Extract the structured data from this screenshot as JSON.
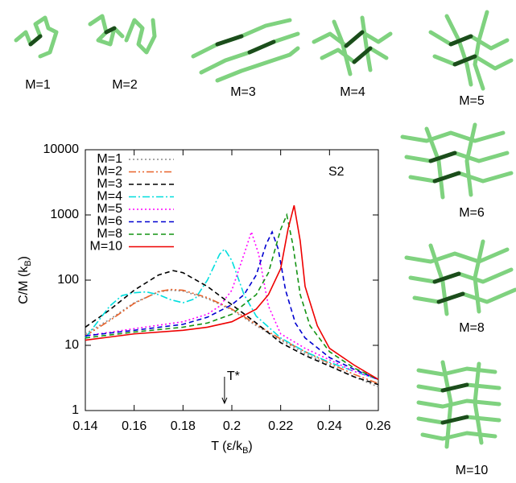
{
  "chart_data": {
    "type": "line",
    "xlabel": [
      "T (ε/k",
      "B",
      ")"
    ],
    "ylabel": [
      "C/M (k",
      "B",
      ")"
    ],
    "xlim": [
      0.14,
      0.26
    ],
    "xticks": [
      0.14,
      0.16,
      0.18,
      0.2,
      0.22,
      0.24,
      0.26
    ],
    "ylim": [
      1,
      10000
    ],
    "yticks": [
      1,
      10,
      100,
      1000,
      10000
    ],
    "ylog": true,
    "legend": "upper left",
    "annotations": [
      {
        "text": "S2"
      },
      {
        "text": "T*",
        "x": 0.197
      }
    ],
    "series": [
      {
        "name": "M=1",
        "color": "#8c8c8c",
        "style": "dotted",
        "x": [
          0.14,
          0.15,
          0.16,
          0.17,
          0.175,
          0.18,
          0.19,
          0.2,
          0.21,
          0.22,
          0.23,
          0.24,
          0.25,
          0.26
        ],
        "values": [
          15,
          25,
          45,
          66,
          70,
          68,
          52,
          35,
          20,
          12,
          7.5,
          5,
          3.3,
          2.3
        ]
      },
      {
        "name": "M=2",
        "color": "#e8622a",
        "style": "dash-dot-dot",
        "x": [
          0.14,
          0.15,
          0.16,
          0.17,
          0.175,
          0.18,
          0.19,
          0.2,
          0.21,
          0.22,
          0.23,
          0.24,
          0.25,
          0.26
        ],
        "values": [
          14,
          24,
          44,
          67,
          72,
          70,
          54,
          36,
          21,
          12.5,
          8,
          5.3,
          3.6,
          2.6
        ]
      },
      {
        "name": "M=3",
        "color": "#000000",
        "style": "dashed",
        "x": [
          0.14,
          0.15,
          0.16,
          0.17,
          0.176,
          0.18,
          0.19,
          0.2,
          0.21,
          0.22,
          0.23,
          0.24,
          0.25,
          0.26
        ],
        "values": [
          19,
          35,
          70,
          120,
          140,
          130,
          80,
          42,
          22,
          11,
          7,
          4.8,
          3.3,
          2.5
        ]
      },
      {
        "name": "M=4",
        "color": "#00dede",
        "style": "dash-dot",
        "x": [
          0.14,
          0.15,
          0.155,
          0.16,
          0.165,
          0.17,
          0.175,
          0.18,
          0.185,
          0.19,
          0.195,
          0.197,
          0.2,
          0.205,
          0.21,
          0.22,
          0.23,
          0.24,
          0.25,
          0.26
        ],
        "values": [
          13,
          40,
          58,
          64,
          66,
          60,
          50,
          45,
          52,
          100,
          250,
          300,
          200,
          60,
          28,
          13,
          8,
          5.5,
          4,
          3
        ]
      },
      {
        "name": "M=5",
        "color": "#ff00ff",
        "style": "dotted",
        "x": [
          0.14,
          0.16,
          0.18,
          0.19,
          0.195,
          0.2,
          0.205,
          0.208,
          0.211,
          0.215,
          0.22,
          0.23,
          0.24,
          0.25,
          0.26
        ],
        "values": [
          14,
          18,
          23,
          30,
          40,
          70,
          250,
          550,
          250,
          40,
          15,
          9,
          6,
          4,
          3
        ]
      },
      {
        "name": "M=6",
        "color": "#0000d0",
        "style": "dashed",
        "x": [
          0.14,
          0.16,
          0.18,
          0.19,
          0.2,
          0.205,
          0.21,
          0.214,
          0.2165,
          0.219,
          0.222,
          0.226,
          0.23,
          0.24,
          0.25,
          0.26
        ],
        "values": [
          14,
          17,
          21,
          27,
          42,
          60,
          120,
          350,
          550,
          300,
          70,
          22,
          13,
          6.5,
          4.3,
          3
        ]
      },
      {
        "name": "M=8",
        "color": "#139313",
        "style": "dashed",
        "x": [
          0.14,
          0.16,
          0.18,
          0.19,
          0.2,
          0.21,
          0.215,
          0.22,
          0.2225,
          0.225,
          0.228,
          0.232,
          0.24,
          0.25,
          0.26
        ],
        "values": [
          13,
          16,
          19,
          22,
          30,
          60,
          130,
          600,
          1000,
          350,
          60,
          20,
          8,
          4.5,
          3
        ]
      },
      {
        "name": "M=10",
        "color": "#ee0000",
        "style": "solid",
        "x": [
          0.14,
          0.16,
          0.18,
          0.19,
          0.2,
          0.21,
          0.215,
          0.22,
          0.223,
          0.2255,
          0.228,
          0.23,
          0.235,
          0.24,
          0.25,
          0.26
        ],
        "values": [
          12,
          15,
          17,
          19,
          23,
          36,
          60,
          150,
          600,
          1400,
          400,
          80,
          20,
          9,
          5,
          3
        ]
      }
    ]
  },
  "structures": [
    "M=1",
    "M=2",
    "M=3",
    "M=4",
    "M=5",
    "M=6",
    "M=8",
    "M=10"
  ]
}
